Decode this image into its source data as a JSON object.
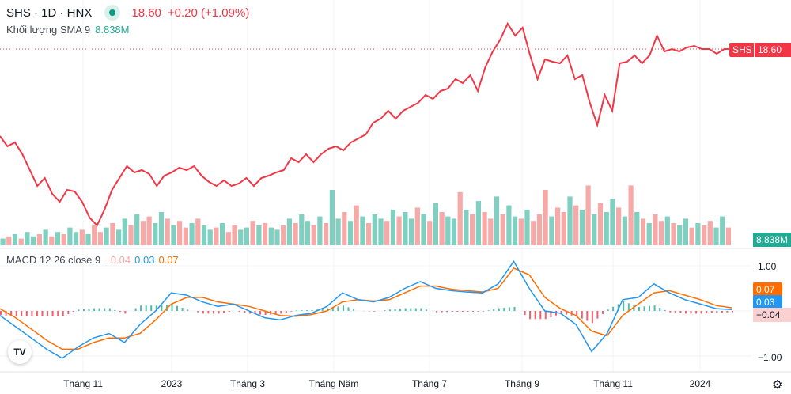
{
  "header": {
    "symbol": "SHS · 1D · HNX",
    "price": "18.60",
    "change": "+0.20 (+1.09%)",
    "volume_label": "Khối lượng SMA 9",
    "volume_value": "8.838M"
  },
  "macd_legend": {
    "label": "MACD 12 26 close 9",
    "hist": "−0.04",
    "macd": "0.03",
    "signal": "0.07"
  },
  "price_tag": {
    "symbol": "SHS",
    "value": "18.60"
  },
  "volume_tag": "8.838M",
  "macd_axis": {
    "top": "1.00",
    "bottom": "−1.00",
    "signal_tag": "0.07",
    "macd_tag": "0.03",
    "hist_tag": "−0.04"
  },
  "colors": {
    "price": "#f23645",
    "up": "#22ab94",
    "down": "#f7a9a7",
    "macd": "#2196f3",
    "signal": "#ff6d00"
  },
  "icons": {
    "logo": "TV",
    "settings": "⚙"
  },
  "chart_data": [
    {
      "type": "line",
      "title": "SHS · 1D · HNX",
      "series_name": "SHS",
      "current": 18.6,
      "values": [
        13.1,
        12.45,
        12.7,
        11.95,
        10.95,
        9.95,
        10.45,
        9.45,
        8.95,
        9.7,
        9.6,
        8.95,
        7.95,
        7.45,
        8.45,
        9.7,
        10.45,
        11.2,
        10.8,
        10.95,
        10.7,
        9.95,
        10.6,
        10.8,
        11.1,
        10.95,
        11.2,
        10.6,
        10.2,
        9.95,
        10.3,
        9.95,
        10.1,
        10.45,
        9.95,
        10.45,
        10.6,
        10.8,
        10.95,
        11.7,
        11.45,
        11.95,
        11.45,
        11.95,
        12.3,
        12.45,
        12.2,
        12.7,
        12.95,
        13.2,
        13.95,
        14.2,
        14.7,
        14.2,
        14.7,
        14.95,
        15.2,
        15.7,
        15.45,
        15.95,
        16.1,
        16.7,
        16.45,
        16.95,
        15.95,
        17.45,
        18.45,
        19.2,
        20.2,
        19.45,
        19.95,
        18.2,
        16.7,
        17.95,
        17.8,
        17.7,
        18.2,
        16.7,
        16.95,
        15.2,
        13.8,
        15.7,
        14.7,
        17.7,
        17.8,
        18.2,
        17.7,
        18.2,
        19.45,
        18.45,
        18.6,
        18.45,
        18.7,
        18.8,
        18.6,
        18.6,
        18.3,
        18.6,
        18.6
      ]
    },
    {
      "type": "bar",
      "title": "Khối lượng",
      "unit": "M",
      "values": [
        3,
        4,
        5,
        3,
        6,
        4,
        5,
        7,
        4,
        6,
        5,
        8,
        6,
        7,
        5,
        9,
        6,
        8,
        10,
        7,
        12,
        9,
        14,
        11,
        13,
        10,
        15,
        12,
        9,
        11,
        8,
        10,
        12,
        9,
        7,
        8,
        10,
        6,
        9,
        7,
        8,
        11,
        9,
        10,
        8,
        7,
        9,
        12,
        10,
        14,
        11,
        9,
        13,
        10,
        25,
        12,
        15,
        11,
        18,
        13,
        10,
        14,
        12,
        11,
        16,
        13,
        15,
        12,
        17,
        14,
        11,
        19,
        15,
        13,
        12,
        24,
        16,
        14,
        20,
        15,
        12,
        22,
        14,
        18,
        13,
        12,
        16,
        11,
        14,
        25,
        13,
        17,
        15,
        22,
        18,
        16,
        27,
        14,
        19,
        15,
        21,
        17,
        13,
        27,
        15,
        12,
        10,
        14,
        11,
        13,
        10,
        9,
        12,
        8,
        10,
        9,
        11,
        8,
        13,
        8
      ],
      "up": [
        1,
        0,
        1,
        0,
        1,
        1,
        0,
        1,
        0,
        1,
        0,
        1,
        1,
        0,
        1,
        0,
        0,
        1,
        0,
        1,
        1,
        0,
        1,
        0,
        0,
        1,
        1,
        0,
        1,
        0,
        0,
        1,
        0,
        1,
        1,
        0,
        1,
        0,
        0,
        1,
        1,
        0,
        1,
        0,
        1,
        1,
        0,
        1,
        0,
        1,
        1,
        0,
        1,
        0,
        1,
        1,
        0,
        1,
        0,
        1,
        0,
        1,
        1,
        0,
        1,
        0,
        1,
        1,
        0,
        1,
        0,
        1,
        0,
        1,
        1,
        0,
        1,
        0,
        1,
        0,
        0,
        1,
        0,
        1,
        1,
        0,
        1,
        0,
        0,
        0,
        1,
        0,
        0,
        1,
        0,
        1,
        0,
        1,
        0,
        1,
        1,
        0,
        1,
        0,
        1,
        0,
        1,
        0,
        0,
        1,
        0,
        1,
        1,
        0,
        1,
        0,
        0,
        1,
        1,
        0
      ],
      "current": 8.838
    },
    {
      "type": "line",
      "title": "MACD 12 26 close 9",
      "ylim": [
        -1.2,
        1.2
      ],
      "yticks": [
        1.0,
        -1.0
      ],
      "x_labels": [
        "Tháng 11",
        "2023",
        "Tháng 3",
        "Tháng Năm",
        "Tháng 7",
        "Tháng 9",
        "Tháng 11",
        "2024"
      ],
      "series": [
        {
          "name": "MACD",
          "values": [
            -0.1,
            -0.35,
            -0.6,
            -0.85,
            -1.05,
            -0.8,
            -0.6,
            -0.5,
            -0.7,
            -0.3,
            0.0,
            0.4,
            0.35,
            0.2,
            0.1,
            0.15,
            0.0,
            -0.15,
            -0.2,
            -0.1,
            -0.05,
            0.1,
            0.4,
            0.25,
            0.2,
            0.3,
            0.5,
            0.65,
            0.5,
            0.45,
            0.42,
            0.4,
            0.6,
            1.1,
            0.5,
            0.0,
            -0.05,
            -0.3,
            -0.9,
            -0.5,
            0.25,
            0.3,
            0.6,
            0.4,
            0.25,
            0.15,
            0.05,
            0.03
          ]
        },
        {
          "name": "Signal",
          "values": [
            0.05,
            -0.15,
            -0.4,
            -0.65,
            -0.85,
            -0.85,
            -0.7,
            -0.6,
            -0.6,
            -0.5,
            -0.2,
            0.15,
            0.3,
            0.3,
            0.2,
            0.15,
            0.1,
            0.0,
            -0.1,
            -0.12,
            -0.08,
            0.0,
            0.2,
            0.25,
            0.22,
            0.25,
            0.4,
            0.55,
            0.55,
            0.48,
            0.45,
            0.42,
            0.5,
            0.95,
            0.8,
            0.3,
            0.05,
            -0.1,
            -0.45,
            -0.55,
            -0.1,
            0.15,
            0.4,
            0.45,
            0.35,
            0.25,
            0.12,
            0.07
          ]
        }
      ]
    }
  ]
}
